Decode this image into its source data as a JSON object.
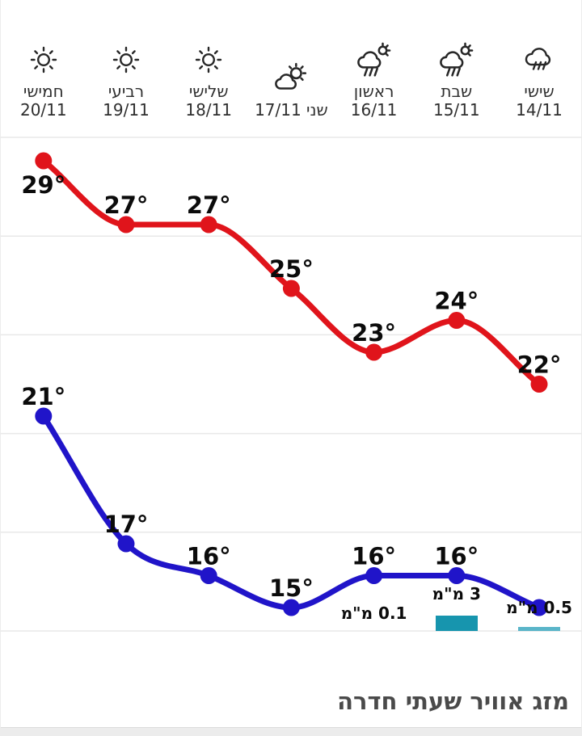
{
  "widget": {
    "title": "מזג אוויר שעתי חדרה"
  },
  "colors": {
    "high_line": "#e0141b",
    "low_line": "#2014c9",
    "precip_bar": "#1795ae",
    "precip_bar_light": "#5ab5c9",
    "grid": "#e8e8e8",
    "temp_label": "#0b0b0b",
    "day_text": "#2f2f2f",
    "title_text": "#4a4a4a",
    "icon_stroke": "#272727",
    "strip_bg": "#ececec"
  },
  "days": [
    {
      "name": "שישי",
      "date": "14/11",
      "icon": "rain-icon"
    },
    {
      "name": "שבת",
      "date": "15/11",
      "icon": "rain-sun-icon"
    },
    {
      "name": "ראשון",
      "date": "16/11",
      "icon": "rain-sun-icon"
    },
    {
      "name": "שני",
      "date": "17/11",
      "icon": "cloud-sun-icon",
      "inline": true
    },
    {
      "name": "שלישי",
      "date": "18/11",
      "icon": "sun-icon"
    },
    {
      "name": "רביעי",
      "date": "19/11",
      "icon": "sun-icon"
    },
    {
      "name": "חמישי",
      "date": "20/11",
      "icon": "sun-icon"
    }
  ],
  "chart_data": {
    "type": "line",
    "rtl": true,
    "grid": true,
    "categories": [
      "שישי 14/11",
      "שבת 15/11",
      "ראשון 16/11",
      "שני 17/11",
      "שלישי 18/11",
      "רביעי 19/11",
      "חמישי 20/11"
    ],
    "series": [
      {
        "id": "high",
        "color": "#e0141b",
        "values": [
          22,
          24,
          23,
          25,
          27,
          27,
          29
        ],
        "labels": [
          "22°",
          "24°",
          "23°",
          "25°",
          "27°",
          "27°",
          "29°"
        ]
      },
      {
        "id": "low",
        "color": "#2014c9",
        "values": [
          15,
          16,
          16,
          15,
          16,
          17,
          21
        ],
        "labels": [
          null,
          "16°",
          "16°",
          "15°",
          "16°",
          "17°",
          "21°"
        ]
      }
    ],
    "label_below": {
      "high": [
        6
      ],
      "low": []
    },
    "precip_mm": [
      0.5,
      3,
      0.1,
      null,
      null,
      null,
      null
    ],
    "precip_labels": [
      "0.5 מ\"מ",
      "3 מ\"מ",
      "0.1 מ\"מ",
      null,
      null,
      null,
      null
    ],
    "ylim": [
      13,
      30
    ]
  }
}
